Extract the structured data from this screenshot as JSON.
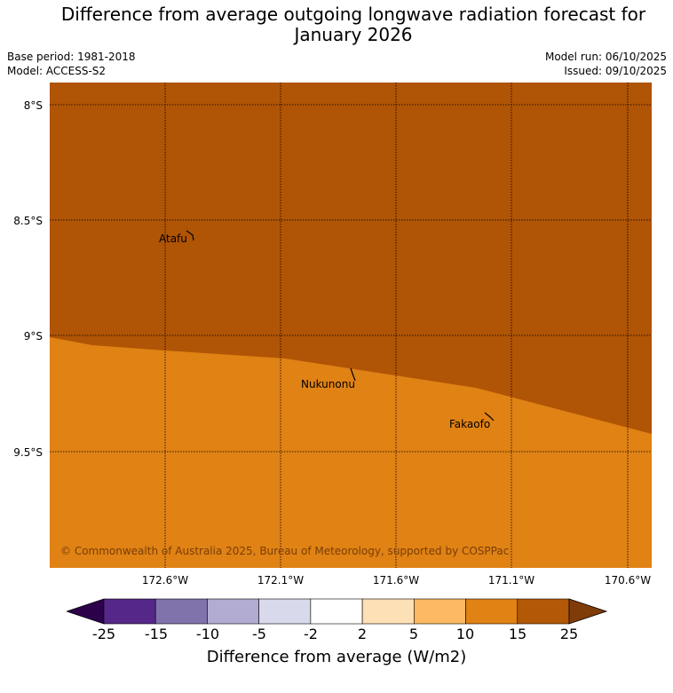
{
  "title": {
    "line1": "Difference from average outgoing longwave radiation forecast for",
    "line2": "January 2026"
  },
  "meta": {
    "base_period": "Base period: 1981-2018",
    "model": "Model: ACCESS-S2",
    "model_run": "Model run: 06/10/2025",
    "issued": "Issued: 09/10/2025"
  },
  "map": {
    "lat_labels": [
      "8°S",
      "8.5°S",
      "9°S",
      "9.5°S"
    ],
    "lon_labels": [
      "172.6°W",
      "172.1°W",
      "171.6°W",
      "171.1°W",
      "170.6°W"
    ],
    "places": [
      "Atafu",
      "Nukunonu",
      "Fakaofo"
    ],
    "copyright": "© Commonwealth of Australia 2025, Bureau of Meteorology, supported by COSPPac",
    "regions": [
      {
        "category": "15 to 25",
        "color": "#b05405"
      },
      {
        "category": "10 to 15",
        "color": "#e08214"
      }
    ]
  },
  "colorbar": {
    "ticks": [
      "-25",
      "-15",
      "-10",
      "-5",
      "-2",
      "2",
      "5",
      "10",
      "15",
      "25"
    ],
    "colors": [
      "#542788",
      "#8073ac",
      "#b2abd2",
      "#d8daeb",
      "#ffffff",
      "#fee0b6",
      "#fdb863",
      "#e08214",
      "#b35806"
    ],
    "under_color": "#2d004b",
    "over_color": "#7f3b08",
    "label": "Difference from average (W/m2)"
  }
}
